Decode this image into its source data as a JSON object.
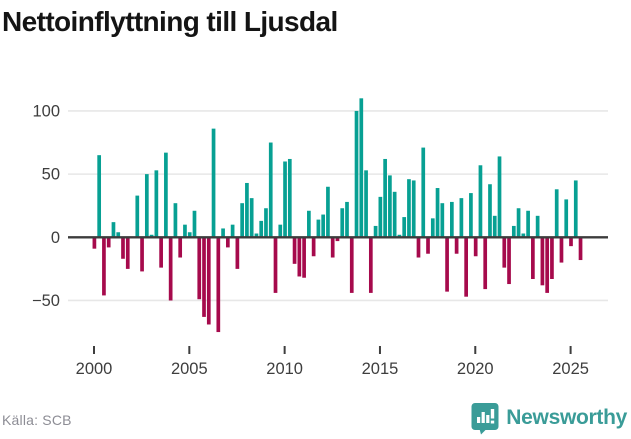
{
  "header": {
    "title": "Nettoinflyttning till Ljusdal"
  },
  "chart_data": {
    "type": "bar",
    "title": "Nettoinflyttning till Ljusdal",
    "x_unit": "quarter",
    "start": "2000Q1",
    "end": "2025Q3",
    "quarters": [
      "2000Q1",
      "2000Q2",
      "2000Q3",
      "2000Q4",
      "2001Q1",
      "2001Q2",
      "2001Q3",
      "2001Q4",
      "2002Q1",
      "2002Q2",
      "2002Q3",
      "2002Q4",
      "2003Q1",
      "2003Q2",
      "2003Q3",
      "2003Q4",
      "2004Q1",
      "2004Q2",
      "2004Q3",
      "2004Q4",
      "2005Q1",
      "2005Q2",
      "2005Q3",
      "2005Q4",
      "2006Q1",
      "2006Q2",
      "2006Q3",
      "2006Q4",
      "2007Q1",
      "2007Q2",
      "2007Q3",
      "2007Q4",
      "2008Q1",
      "2008Q2",
      "2008Q3",
      "2008Q4",
      "2009Q1",
      "2009Q2",
      "2009Q3",
      "2009Q4",
      "2010Q1",
      "2010Q2",
      "2010Q3",
      "2010Q4",
      "2011Q1",
      "2011Q2",
      "2011Q3",
      "2011Q4",
      "2012Q1",
      "2012Q2",
      "2012Q3",
      "2012Q4",
      "2013Q1",
      "2013Q2",
      "2013Q3",
      "2013Q4",
      "2014Q1",
      "2014Q2",
      "2014Q3",
      "2014Q4",
      "2015Q1",
      "2015Q2",
      "2015Q3",
      "2015Q4",
      "2016Q1",
      "2016Q2",
      "2016Q3",
      "2016Q4",
      "2017Q1",
      "2017Q2",
      "2017Q3",
      "2017Q4",
      "2018Q1",
      "2018Q2",
      "2018Q3",
      "2018Q4",
      "2019Q1",
      "2019Q2",
      "2019Q3",
      "2019Q4",
      "2020Q1",
      "2020Q2",
      "2020Q3",
      "2020Q4",
      "2021Q1",
      "2021Q2",
      "2021Q3",
      "2021Q4",
      "2022Q1",
      "2022Q2",
      "2022Q3",
      "2022Q4",
      "2023Q1",
      "2023Q2",
      "2023Q3",
      "2023Q4",
      "2024Q1",
      "2024Q2",
      "2024Q3",
      "2024Q4",
      "2025Q1",
      "2025Q2",
      "2025Q3"
    ],
    "values": [
      -9,
      65,
      -46,
      -8,
      12,
      4,
      -17,
      -25,
      0,
      33,
      -27,
      50,
      2,
      53,
      -24,
      67,
      -50,
      27,
      -16,
      10,
      4,
      21,
      -49,
      -63,
      -69,
      86,
      -75,
      7,
      -8,
      10,
      -25,
      27,
      43,
      31,
      3,
      13,
      23,
      75,
      -44,
      10,
      60,
      62,
      -21,
      -31,
      -32,
      21,
      -15,
      14,
      18,
      40,
      -16,
      -3,
      23,
      28,
      -44,
      100,
      110,
      53,
      -44,
      9,
      32,
      62,
      49,
      36,
      2,
      16,
      46,
      45,
      -16,
      71,
      -13,
      15,
      39,
      27,
      -43,
      28,
      -13,
      31,
      -47,
      35,
      -15,
      57,
      -41,
      42,
      17,
      64,
      -24,
      -37,
      9,
      23,
      3,
      21,
      -33,
      17,
      -38,
      -44,
      -33,
      38,
      -20,
      30,
      -7,
      45,
      -18
    ],
    "y_ticks": [
      100,
      50,
      0,
      -50
    ],
    "y_tick_labels": [
      "100",
      "50",
      "0",
      "−50"
    ],
    "x_ticks": [
      2000,
      2005,
      2010,
      2015,
      2020,
      2025
    ],
    "ylim": [
      -85,
      115
    ],
    "grid": "horizontal",
    "legend": "none",
    "positive_color": "#07a093",
    "negative_color": "#a60a4c"
  },
  "footer": {
    "source": "Källa: SCB",
    "brand": "Newsworthy",
    "brand_color": "#3a9c98",
    "brand_icon": "bar-chart-speech-bubble-icon"
  }
}
